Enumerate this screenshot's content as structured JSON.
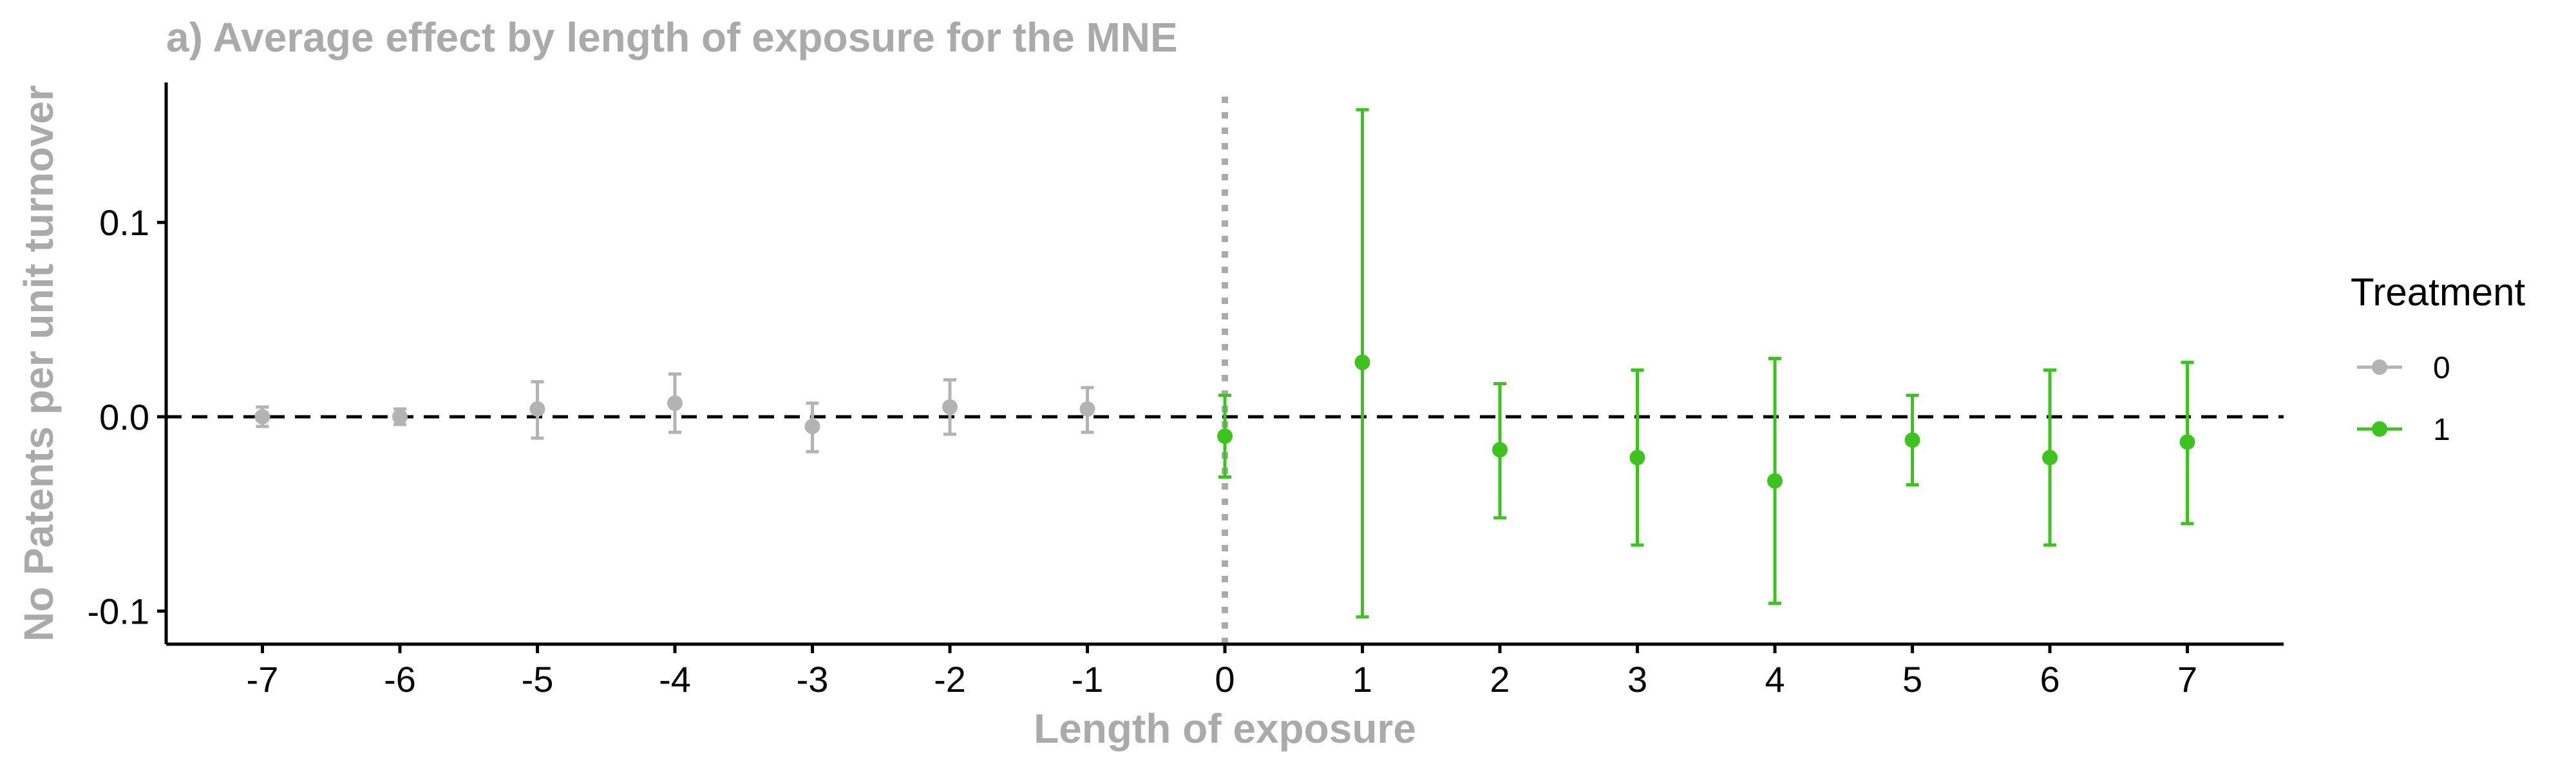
{
  "chart_data": {
    "type": "scatter",
    "title": "a) Average effect by length of exposure for the MNE",
    "xlabel": "Length of exposure",
    "ylabel": "No Patents per unit turnover",
    "xlim": [
      -7.7,
      7.7
    ],
    "ylim": [
      -0.117,
      0.172
    ],
    "xticks": [
      -7,
      -6,
      -5,
      -4,
      -3,
      -2,
      -1,
      0,
      1,
      2,
      3,
      4,
      5,
      6,
      7
    ],
    "yticks": [
      -0.1,
      0.0,
      0.1
    ],
    "ytick_labels": [
      "-0.1",
      "0.0",
      "0.1"
    ],
    "reference_lines": {
      "horizontal_y": 0,
      "vertical_x": 0
    },
    "legend": {
      "title": "Treatment",
      "position": "right",
      "entries": [
        {
          "label": "0",
          "color": "#B3B3B3"
        },
        {
          "label": "1",
          "color": "#3CC31E"
        }
      ]
    },
    "series": [
      {
        "name": "0",
        "color": "#B3B3B3",
        "points": [
          {
            "x": -7,
            "y": 0.0,
            "lower": -0.005,
            "upper": 0.005
          },
          {
            "x": -6,
            "y": 0.0,
            "lower": -0.004,
            "upper": 0.004
          },
          {
            "x": -5,
            "y": 0.004,
            "lower": -0.011,
            "upper": 0.018
          },
          {
            "x": -4,
            "y": 0.007,
            "lower": -0.008,
            "upper": 0.022
          },
          {
            "x": -3,
            "y": -0.005,
            "lower": -0.018,
            "upper": 0.007
          },
          {
            "x": -2,
            "y": 0.005,
            "lower": -0.009,
            "upper": 0.019
          },
          {
            "x": -1,
            "y": 0.004,
            "lower": -0.008,
            "upper": 0.015
          }
        ]
      },
      {
        "name": "1",
        "color": "#3CC31E",
        "points": [
          {
            "x": 0,
            "y": -0.01,
            "lower": -0.031,
            "upper": 0.011
          },
          {
            "x": 1,
            "y": 0.028,
            "lower": -0.103,
            "upper": 0.158
          },
          {
            "x": 2,
            "y": -0.017,
            "lower": -0.052,
            "upper": 0.017
          },
          {
            "x": 3,
            "y": -0.021,
            "lower": -0.066,
            "upper": 0.024
          },
          {
            "x": 4,
            "y": -0.033,
            "lower": -0.096,
            "upper": 0.03
          },
          {
            "x": 5,
            "y": -0.012,
            "lower": -0.035,
            "upper": 0.011
          },
          {
            "x": 6,
            "y": -0.021,
            "lower": -0.066,
            "upper": 0.024
          },
          {
            "x": 7,
            "y": -0.013,
            "lower": -0.055,
            "upper": 0.028
          }
        ]
      }
    ],
    "colors": {
      "title": "#AAAAAA",
      "axis_title": "#AAAAAA",
      "axis_line": "#000000",
      "zero_line": "#000000",
      "vertical_line": "#AAAAAA"
    }
  }
}
